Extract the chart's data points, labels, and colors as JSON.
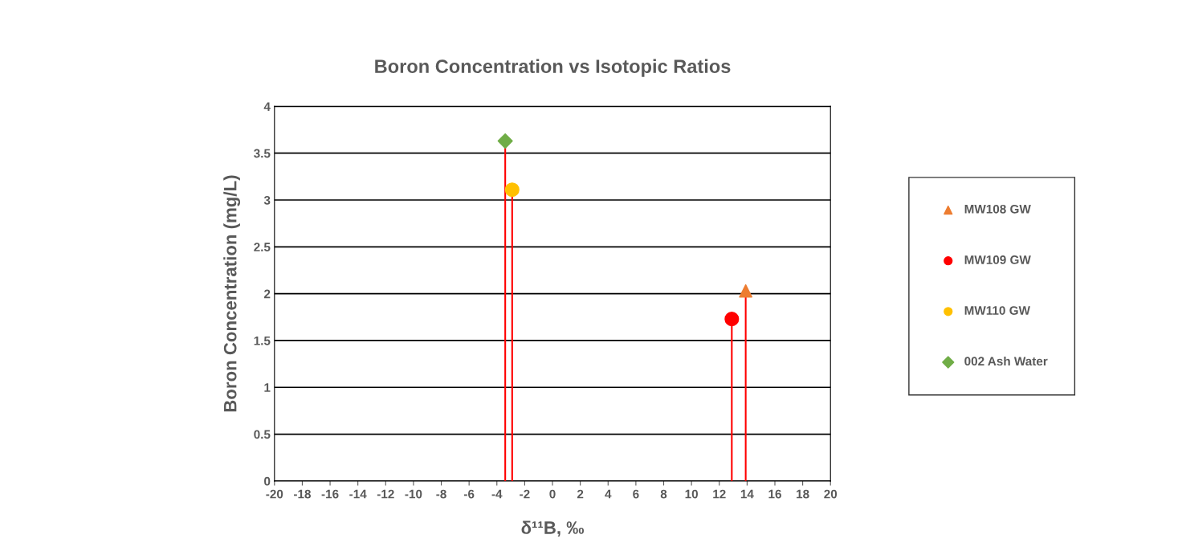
{
  "chart_data": {
    "type": "scatter",
    "title": "Boron Concentration vs Isotopic Ratios",
    "xlabel": "δ¹¹B, ‰",
    "ylabel": "Boron Concentration (mg/L)",
    "xlim": [
      -20,
      20
    ],
    "xticks": [
      -20,
      -18,
      -16,
      -14,
      -12,
      -10,
      -8,
      -6,
      -4,
      -2,
      0,
      2,
      4,
      6,
      8,
      10,
      12,
      14,
      16,
      18,
      20
    ],
    "ylim": [
      0,
      4
    ],
    "yticks": [
      0,
      0.5,
      1,
      1.5,
      2,
      2.5,
      3,
      3.5,
      4
    ],
    "grid": "y",
    "legend": "right",
    "series": [
      {
        "name": "MW108 GW",
        "color": "#ed7d31",
        "marker": "triangle",
        "x": [
          13.9
        ],
        "values": [
          2.03
        ],
        "errors": [
          [
            2.03,
            0
          ]
        ]
      },
      {
        "name": "MW109 GW",
        "color": "#ff0000",
        "marker": "circle",
        "x": [
          12.9
        ],
        "values": [
          1.73
        ],
        "errors": [
          [
            1.73,
            0
          ]
        ]
      },
      {
        "name": "MW110 GW",
        "color": "#ffc000",
        "marker": "circle",
        "x": [
          -2.9
        ],
        "values": [
          3.11
        ],
        "errors": [
          [
            3.11,
            0
          ]
        ]
      },
      {
        "name": "002 Ash Water",
        "color": "#70ad47",
        "marker": "diamond",
        "x": [
          -3.4
        ],
        "values": [
          3.63
        ],
        "errors": [
          [
            3.63,
            0
          ]
        ]
      }
    ]
  }
}
